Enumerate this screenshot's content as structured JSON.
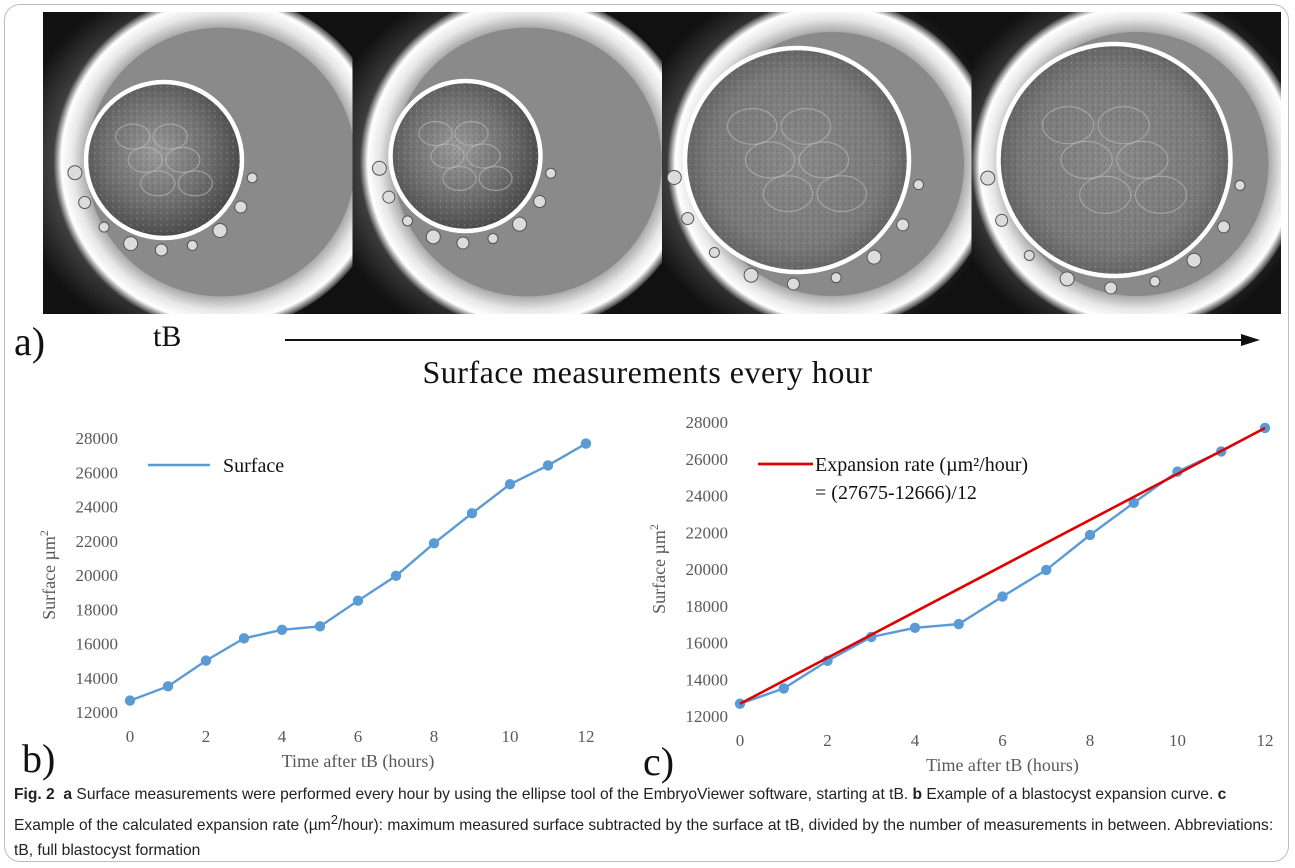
{
  "figure": {
    "panel_labels": {
      "a": "a)",
      "b": "b)",
      "c": "c)"
    },
    "strip_start_label": "tB",
    "strip_axis_label": "Surface measurements every hour",
    "strip_images": [
      "embryo-frame-1",
      "embryo-frame-2",
      "embryo-frame-3",
      "embryo-frame-4"
    ]
  },
  "caption": {
    "figure_number": "Fig. 2",
    "a_marker": "a",
    "a_text": " Surface measurements were performed every hour by using the ellipse tool of the EmbryoViewer software, starting at tB. ",
    "b_marker": "b",
    "b_text": " Example of a blastocyst expansion curve. ",
    "c_marker": "c",
    "c_text_1": " Example of the calculated expansion rate (µm",
    "c_sup": "2",
    "c_text_2": "/hour): maximum measured surface subtracted by the surface at tB, divided by the number of measurements in between. Abbreviations: tB, full blastocyst formation"
  },
  "chart_data": [
    {
      "type": "line",
      "panel": "b",
      "x": [
        0,
        1,
        2,
        3,
        4,
        5,
        6,
        7,
        8,
        9,
        10,
        11,
        12
      ],
      "series": [
        {
          "name": "Surface",
          "color": "#5b9bd5",
          "values": [
            12666,
            13500,
            15000,
            16300,
            16800,
            17000,
            18500,
            19950,
            21850,
            23600,
            25300,
            26400,
            27675
          ]
        }
      ],
      "xlabel": "Time after tB (hours)",
      "ylabel_main": "Surface µm",
      "ylabel_sup": "2",
      "xlim": [
        0,
        12
      ],
      "ylim": [
        12000,
        28000
      ],
      "xticks": [
        0,
        2,
        4,
        6,
        8,
        10,
        12
      ],
      "yticks": [
        12000,
        14000,
        16000,
        18000,
        20000,
        22000,
        24000,
        26000,
        28000
      ],
      "grid": false,
      "legend_position": "top-left"
    },
    {
      "type": "line",
      "panel": "c",
      "x": [
        0,
        1,
        2,
        3,
        4,
        5,
        6,
        7,
        8,
        9,
        10,
        11,
        12
      ],
      "series": [
        {
          "name": "",
          "color": "#5b9bd5",
          "values": [
            12666,
            13500,
            15000,
            16300,
            16800,
            17000,
            18500,
            19950,
            21850,
            23600,
            25300,
            26400,
            27675
          ]
        },
        {
          "name": "Expansion rate (µm²/hour) = (27675-12666)/12",
          "color": "#e00000",
          "x": [
            0,
            12
          ],
          "values": [
            12666,
            27675
          ]
        }
      ],
      "legend_lines": [
        "Expansion rate (µm²/hour)",
        "= (27675-12666)/12"
      ],
      "xlabel": "Time after tB (hours)",
      "ylabel_main": "Surface µm",
      "ylabel_sup": "2",
      "xlim": [
        0,
        12
      ],
      "ylim": [
        12000,
        28000
      ],
      "xticks": [
        0,
        2,
        4,
        6,
        8,
        10,
        12
      ],
      "yticks": [
        12000,
        14000,
        16000,
        18000,
        20000,
        22000,
        24000,
        26000,
        28000
      ],
      "grid": false,
      "legend_position": "top-left"
    }
  ]
}
